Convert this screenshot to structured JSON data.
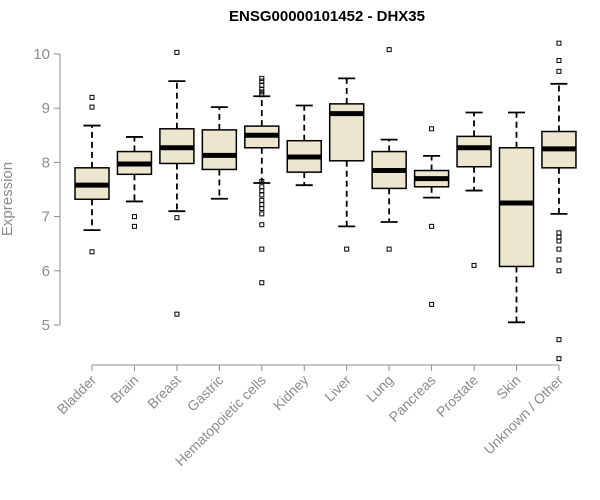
{
  "chart_data": {
    "type": "boxplot",
    "title": "ENSG00000101452 - DHX35",
    "xlabel": "",
    "ylabel": "Expression",
    "ylim": [
      4.3,
      10.35
    ],
    "yticks": [
      5,
      6,
      7,
      8,
      9,
      10
    ],
    "categories": [
      "Bladder",
      "Brain",
      "Breast",
      "Gastric",
      "Hematopoietic cells",
      "Kidney",
      "Liver",
      "Lung",
      "Pancreas",
      "Prostate",
      "Skin",
      "Unknown / Other"
    ],
    "boxes": [
      {
        "name": "Bladder",
        "whisker_low": 6.75,
        "q1": 7.32,
        "median": 7.58,
        "q3": 7.9,
        "whisker_high": 8.68,
        "outliers": [
          6.35,
          9.02,
          9.2
        ]
      },
      {
        "name": "Brain",
        "whisker_low": 7.28,
        "q1": 7.78,
        "median": 7.97,
        "q3": 8.2,
        "whisker_high": 8.47,
        "outliers": [
          6.82,
          7.0
        ]
      },
      {
        "name": "Breast",
        "whisker_low": 7.1,
        "q1": 7.98,
        "median": 8.27,
        "q3": 8.62,
        "whisker_high": 9.5,
        "outliers": [
          5.2,
          6.98,
          10.03
        ]
      },
      {
        "name": "Gastric",
        "whisker_low": 7.33,
        "q1": 7.87,
        "median": 8.13,
        "q3": 8.6,
        "whisker_high": 9.02,
        "outliers": []
      },
      {
        "name": "Hematopoietic cells",
        "whisker_low": 7.62,
        "q1": 8.27,
        "median": 8.5,
        "q3": 8.67,
        "whisker_high": 9.22,
        "outliers": [
          5.78,
          6.4,
          6.85,
          7.05,
          7.15,
          7.22,
          7.3,
          7.4,
          7.48,
          7.55,
          7.65,
          9.25,
          9.3,
          9.35,
          9.42,
          9.5,
          9.55
        ]
      },
      {
        "name": "Kidney",
        "whisker_low": 7.58,
        "q1": 7.82,
        "median": 8.1,
        "q3": 8.4,
        "whisker_high": 9.05,
        "outliers": []
      },
      {
        "name": "Liver",
        "whisker_low": 6.82,
        "q1": 8.03,
        "median": 8.9,
        "q3": 9.08,
        "whisker_high": 9.55,
        "outliers": [
          6.4
        ]
      },
      {
        "name": "Lung",
        "whisker_low": 6.9,
        "q1": 7.52,
        "median": 7.85,
        "q3": 8.2,
        "whisker_high": 8.42,
        "outliers": [
          6.4,
          10.08
        ]
      },
      {
        "name": "Pancreas",
        "whisker_low": 7.35,
        "q1": 7.55,
        "median": 7.7,
        "q3": 7.85,
        "whisker_high": 8.12,
        "outliers": [
          5.38,
          6.82,
          8.62
        ]
      },
      {
        "name": "Prostate",
        "whisker_low": 7.48,
        "q1": 7.92,
        "median": 8.27,
        "q3": 8.48,
        "whisker_high": 8.92,
        "outliers": [
          6.1
        ]
      },
      {
        "name": "Skin",
        "whisker_low": 5.05,
        "q1": 6.08,
        "median": 7.25,
        "q3": 8.27,
        "whisker_high": 8.92,
        "outliers": []
      },
      {
        "name": "Unknown / Other",
        "whisker_low": 7.05,
        "q1": 7.9,
        "median": 8.25,
        "q3": 8.57,
        "whisker_high": 9.45,
        "outliers": [
          4.38,
          4.73,
          6.0,
          6.2,
          6.4,
          6.55,
          6.62,
          6.7,
          9.68,
          9.88,
          10.2
        ]
      }
    ]
  },
  "colors": {
    "box_fill": "#ede6cf",
    "box_stroke": "#000000",
    "median": "#000000",
    "axis": "#8c8c8c",
    "text_muted": "#8c8c8c"
  }
}
